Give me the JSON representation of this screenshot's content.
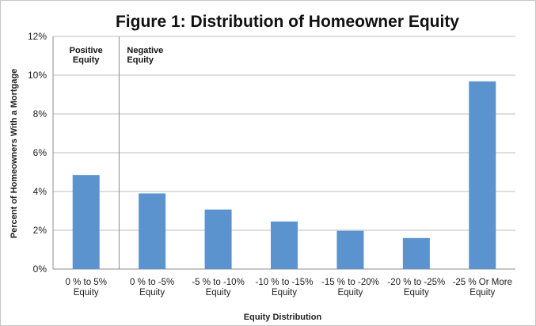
{
  "chart_data": {
    "type": "bar",
    "title": "Figure 1: Distribution of Homeowner Equity",
    "xlabel": "Equity Distribution",
    "ylabel": "Percent of Homeowners With a Mortgage",
    "categories": [
      [
        "0 % to 5%",
        "Equity"
      ],
      [
        "0 % to -5%",
        "Equity"
      ],
      [
        "-5 % to -10%",
        "Equity"
      ],
      [
        "-10 % to -15%",
        "Equity"
      ],
      [
        "-15 % to -20%",
        "Equity"
      ],
      [
        "-20 % to -25%",
        "Equity"
      ],
      [
        "-25 % Or More",
        "Equity"
      ]
    ],
    "values": [
      4.85,
      3.9,
      3.07,
      2.45,
      1.97,
      1.6,
      9.68
    ],
    "ylim": [
      0,
      12
    ],
    "yticks": [
      0,
      2,
      4,
      6,
      8,
      10,
      12
    ],
    "ytick_labels": [
      "0%",
      "2%",
      "4%",
      "6%",
      "8%",
      "10%",
      "12%"
    ],
    "grid": true,
    "color": "#5b93cf",
    "annotations": [
      {
        "lines": [
          "Positive",
          "Equity"
        ],
        "region": "left of divider"
      },
      {
        "lines": [
          "Negative",
          "Equity"
        ],
        "region": "right of divider"
      }
    ],
    "divider_after_category": 0
  }
}
